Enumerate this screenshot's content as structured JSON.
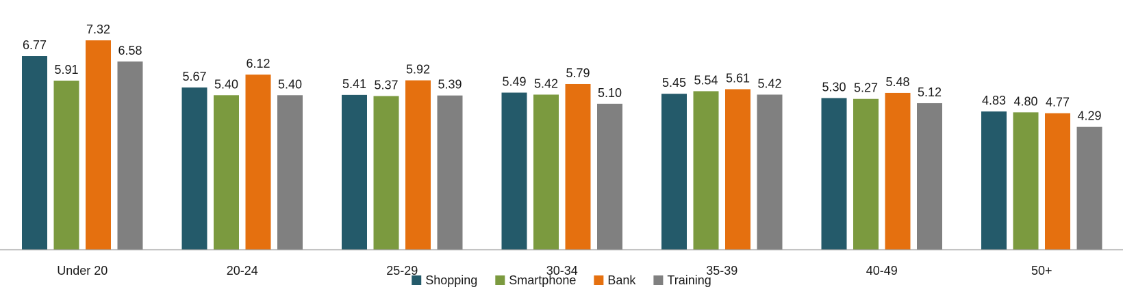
{
  "chart_data": {
    "type": "bar",
    "categories": [
      "Under 20",
      "20-24",
      "25-29",
      "30-34",
      "35-39",
      "40-49",
      "50+"
    ],
    "series": [
      {
        "name": "Shopping",
        "color": "#245a6a",
        "values": [
          6.77,
          5.67,
          5.41,
          5.49,
          5.45,
          5.3,
          4.83
        ]
      },
      {
        "name": "Smartphone",
        "color": "#7b9a3f",
        "values": [
          5.91,
          5.4,
          5.37,
          5.42,
          5.54,
          5.27,
          4.8
        ]
      },
      {
        "name": "Bank",
        "color": "#e5700f",
        "values": [
          7.32,
          6.12,
          5.92,
          5.79,
          5.61,
          5.48,
          4.77
        ]
      },
      {
        "name": "Training",
        "color": "#808080",
        "values": [
          6.58,
          5.4,
          5.39,
          5.1,
          5.42,
          5.12,
          4.29
        ]
      }
    ],
    "title": "",
    "xlabel": "",
    "ylabel": "",
    "ylim": [
      0,
      7.5
    ],
    "grid": false,
    "legend": "bottom",
    "axis_color": "#a6a6a6"
  }
}
